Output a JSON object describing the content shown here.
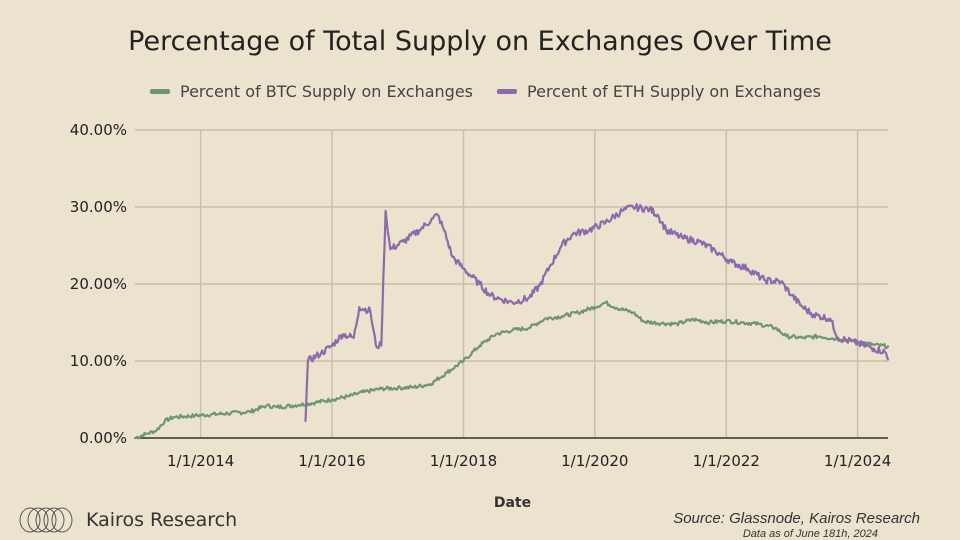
{
  "page": {
    "title": "Percentage of Total Supply on Exchanges Over Time"
  },
  "footer": {
    "brand": "Kairos Research",
    "source": "Source: Glassnode, Kairos Research",
    "date_note": "Data as of June 181h, 2024"
  },
  "colors": {
    "btc": "#6f9577",
    "eth": "#8c6aab",
    "grid": "#c8c0ac",
    "axis": "#333333"
  },
  "chart_data": {
    "type": "line",
    "title": "Percentage of Total Supply on Exchanges Over Time",
    "xlabel": "Date",
    "ylabel": "",
    "x_axis": "date",
    "xlim": [
      "2013-01-01",
      "2024-06-18"
    ],
    "ylim": [
      0,
      40
    ],
    "y_tick_labels": [
      "0.00%",
      "10.00%",
      "20.00%",
      "30.00%",
      "40.00%"
    ],
    "x_tick_labels": [
      "1/1/2014",
      "1/1/2016",
      "1/1/2018",
      "1/1/2020",
      "1/1/2022",
      "1/1/2024"
    ],
    "grid": true,
    "legend": "top",
    "series": [
      {
        "name": "Percent of BTC Supply on Exchanges",
        "points": [
          [
            "2013-01-01",
            0.0
          ],
          [
            "2013-03-01",
            0.5
          ],
          [
            "2013-05-01",
            1.0
          ],
          [
            "2013-06-15",
            2.2
          ],
          [
            "2013-08-01",
            2.7
          ],
          [
            "2013-12-01",
            2.9
          ],
          [
            "2014-06-01",
            3.2
          ],
          [
            "2014-10-01",
            3.4
          ],
          [
            "2015-01-01",
            4.2
          ],
          [
            "2015-03-01",
            4.0
          ],
          [
            "2015-07-01",
            4.3
          ],
          [
            "2015-10-01",
            4.6
          ],
          [
            "2016-01-01",
            5.0
          ],
          [
            "2016-04-01",
            5.4
          ],
          [
            "2016-07-01",
            6.0
          ],
          [
            "2016-10-01",
            6.4
          ],
          [
            "2017-01-01",
            6.5
          ],
          [
            "2017-04-01",
            6.6
          ],
          [
            "2017-07-01",
            7.0
          ],
          [
            "2017-10-01",
            8.5
          ],
          [
            "2018-01-01",
            10.0
          ],
          [
            "2018-04-01",
            12.0
          ],
          [
            "2018-07-01",
            13.5
          ],
          [
            "2018-10-01",
            14.0
          ],
          [
            "2019-01-01",
            14.3
          ],
          [
            "2019-04-01",
            15.5
          ],
          [
            "2019-07-01",
            15.8
          ],
          [
            "2019-10-01",
            16.3
          ],
          [
            "2020-01-01",
            17.0
          ],
          [
            "2020-03-01",
            17.6
          ],
          [
            "2020-05-01",
            16.9
          ],
          [
            "2020-08-01",
            16.3
          ],
          [
            "2020-10-01",
            15.1
          ],
          [
            "2021-01-01",
            14.9
          ],
          [
            "2021-04-01",
            14.8
          ],
          [
            "2021-07-01",
            15.4
          ],
          [
            "2021-10-01",
            15.0
          ],
          [
            "2022-01-01",
            15.2
          ],
          [
            "2022-04-01",
            15.0
          ],
          [
            "2022-07-01",
            14.8
          ],
          [
            "2022-10-01",
            14.3
          ],
          [
            "2022-12-01",
            13.2
          ],
          [
            "2023-03-01",
            13.0
          ],
          [
            "2023-06-01",
            13.2
          ],
          [
            "2023-09-01",
            12.9
          ],
          [
            "2024-01-01",
            12.5
          ],
          [
            "2024-04-01",
            12.1
          ],
          [
            "2024-06-18",
            11.9
          ]
        ]
      },
      {
        "name": "Percent of ETH Supply on Exchanges",
        "points": [
          [
            "2015-08-07",
            2.2
          ],
          [
            "2015-08-20",
            10.0
          ],
          [
            "2015-11-01",
            11.0
          ],
          [
            "2016-01-01",
            12.0
          ],
          [
            "2016-03-01",
            13.5
          ],
          [
            "2016-05-01",
            13.0
          ],
          [
            "2016-06-01",
            17.0
          ],
          [
            "2016-08-01",
            16.5
          ],
          [
            "2016-09-01",
            12.0
          ],
          [
            "2016-10-01",
            12.0
          ],
          [
            "2016-10-25",
            29.5
          ],
          [
            "2016-11-20",
            24.5
          ],
          [
            "2017-02-01",
            25.5
          ],
          [
            "2017-05-01",
            27.0
          ],
          [
            "2017-07-15",
            28.5
          ],
          [
            "2017-08-10",
            29.0
          ],
          [
            "2017-09-15",
            27.0
          ],
          [
            "2017-11-01",
            23.5
          ],
          [
            "2018-01-01",
            22.0
          ],
          [
            "2018-04-01",
            20.0
          ],
          [
            "2018-06-01",
            18.5
          ],
          [
            "2018-08-01",
            18.0
          ],
          [
            "2018-10-01",
            17.6
          ],
          [
            "2019-01-01",
            18.2
          ],
          [
            "2019-03-01",
            19.8
          ],
          [
            "2019-05-01",
            22.5
          ],
          [
            "2019-07-01",
            25.0
          ],
          [
            "2019-09-01",
            26.5
          ],
          [
            "2019-12-01",
            27.0
          ],
          [
            "2020-03-01",
            28.0
          ],
          [
            "2020-06-01",
            29.5
          ],
          [
            "2020-08-01",
            30.0
          ],
          [
            "2020-11-01",
            29.7
          ],
          [
            "2020-12-15",
            29.0
          ],
          [
            "2021-02-01",
            27.0
          ],
          [
            "2021-05-01",
            26.0
          ],
          [
            "2021-08-01",
            25.5
          ],
          [
            "2021-11-01",
            24.3
          ],
          [
            "2022-02-01",
            22.8
          ],
          [
            "2022-05-01",
            22.0
          ],
          [
            "2022-08-01",
            20.5
          ],
          [
            "2022-11-01",
            20.3
          ],
          [
            "2023-01-01",
            18.5
          ],
          [
            "2023-03-01",
            17.0
          ],
          [
            "2023-05-01",
            16.0
          ],
          [
            "2023-08-01",
            15.5
          ],
          [
            "2023-09-15",
            13.0
          ],
          [
            "2024-01-01",
            12.3
          ],
          [
            "2024-04-01",
            11.6
          ],
          [
            "2024-06-01",
            11.2
          ],
          [
            "2024-06-18",
            10.2
          ]
        ]
      }
    ]
  }
}
